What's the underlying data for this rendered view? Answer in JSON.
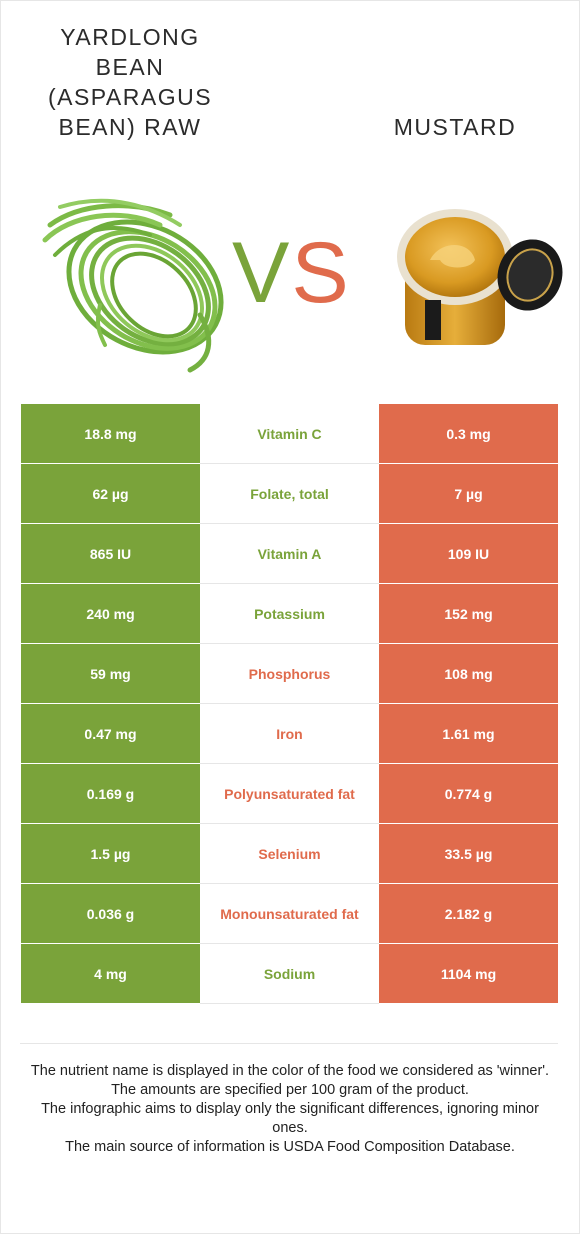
{
  "left_food": {
    "title_lines": [
      "YARDLONG",
      "BEAN",
      "(ASPARAGUS",
      "BEAN) RAW"
    ],
    "color": "#7aa33a",
    "image": "yardlong-bean-image"
  },
  "right_food": {
    "title": "MUSTARD",
    "color": "#e06b4c",
    "image": "mustard-jar-image"
  },
  "vs": {
    "v": "V",
    "s": "S"
  },
  "rows": [
    {
      "left": "18.8 mg",
      "nutrient": "Vitamin C",
      "right": "0.3 mg",
      "winner": "left"
    },
    {
      "left": "62 µg",
      "nutrient": "Folate, total",
      "right": "7 µg",
      "winner": "left"
    },
    {
      "left": "865 IU",
      "nutrient": "Vitamin A",
      "right": "109 IU",
      "winner": "left"
    },
    {
      "left": "240 mg",
      "nutrient": "Potassium",
      "right": "152 mg",
      "winner": "left"
    },
    {
      "left": "59 mg",
      "nutrient": "Phosphorus",
      "right": "108 mg",
      "winner": "right"
    },
    {
      "left": "0.47 mg",
      "nutrient": "Iron",
      "right": "1.61 mg",
      "winner": "right"
    },
    {
      "left": "0.169 g",
      "nutrient": "Polyunsaturated fat",
      "right": "0.774 g",
      "winner": "right"
    },
    {
      "left": "1.5 µg",
      "nutrient": "Selenium",
      "right": "33.5 µg",
      "winner": "right"
    },
    {
      "left": "0.036 g",
      "nutrient": "Monounsaturated fat",
      "right": "2.182 g",
      "winner": "right"
    },
    {
      "left": "4 mg",
      "nutrient": "Sodium",
      "right": "1104 mg",
      "winner": "left"
    }
  ],
  "footer": [
    "The nutrient name is displayed in the color of the food we considered as 'winner'.",
    "The amounts are specified per 100 gram of the product.",
    "The infographic aims to display only the significant differences, ignoring minor ones.",
    "The main source of information is USDA Food Composition Database."
  ]
}
